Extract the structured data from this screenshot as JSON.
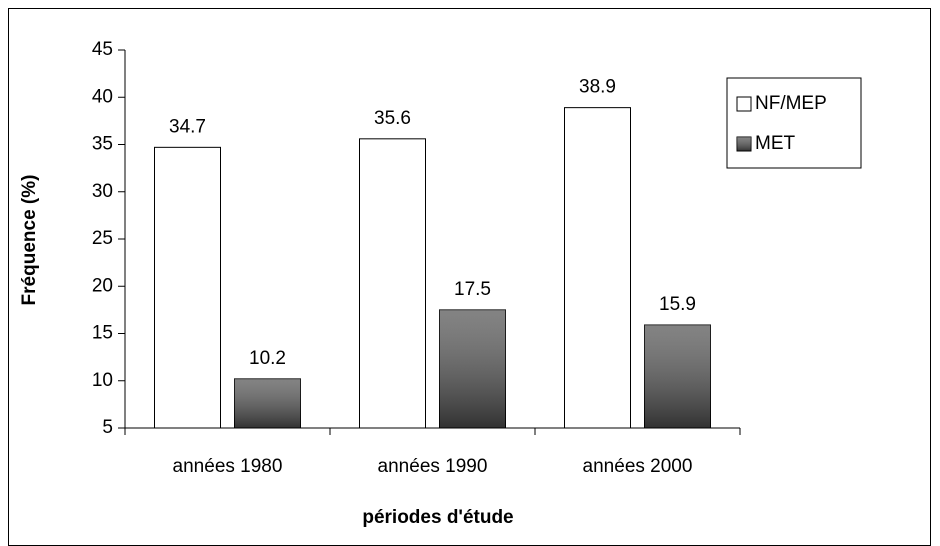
{
  "chart_data": {
    "type": "bar",
    "y_label": "Fréquence (%)",
    "x_label": "périodes d'étude",
    "categories": [
      "années 1980",
      "années 1990",
      "années 2000"
    ],
    "series": [
      {
        "name": "NF/MEP",
        "color": "#ffffff",
        "values": [
          34.7,
          35.6,
          38.9
        ]
      },
      {
        "name": "MET",
        "color": "#5a5a5a",
        "values": [
          10.2,
          17.5,
          15.9
        ]
      }
    ],
    "ylim": [
      5,
      45
    ],
    "yticks": [
      5,
      10,
      15,
      20,
      25,
      30,
      35,
      40,
      45
    ],
    "grid": false,
    "legend": "right"
  }
}
